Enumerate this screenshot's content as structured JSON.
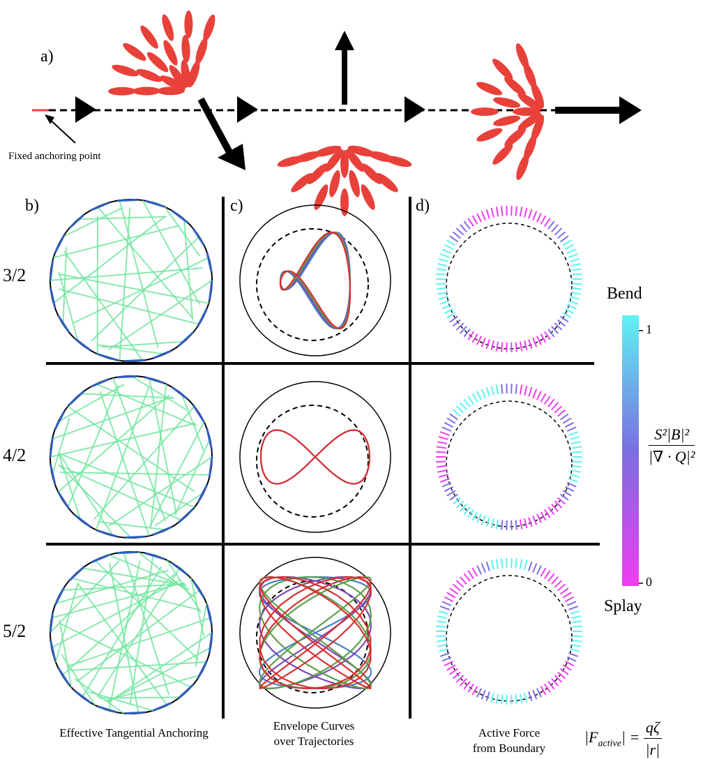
{
  "panel_a": {
    "letter": "a)",
    "anchor_label": "Fixed anchoring point"
  },
  "panel_b": {
    "letter": "b)",
    "caption": "Effective Tangential Anchoring"
  },
  "panel_c": {
    "letter": "c)",
    "caption_line1": "Envelope Curves",
    "caption_line2": "over Trajectories"
  },
  "panel_d": {
    "letter": "d)",
    "caption_line1": "Active Force",
    "caption_line2": "from Boundary"
  },
  "rows": [
    {
      "label": "3/2"
    },
    {
      "label": "4/2"
    },
    {
      "label": "5/2"
    }
  ],
  "colorbar": {
    "top_label": "Bend",
    "bottom_label": "Splay",
    "tick_max": "1",
    "tick_min": "0",
    "color_top": "#5ff2f2",
    "color_mid": "#7a6fe0",
    "color_bottom": "#f03cf0"
  },
  "formulas": {
    "ratio_num": "S²|B|²",
    "ratio_den": "|∇ · Q|²",
    "force_lhs": "|F",
    "force_sub": "active",
    "force_eq": "| =",
    "force_num": "qζ",
    "force_den": "|r|"
  },
  "colors": {
    "director_red": "#e8413a",
    "trajectory_blue": "#4a7fc4",
    "trajectory_purple": "#7b4ab5",
    "trajectory_green": "#5aa04a",
    "trajectory_red": "#d83030",
    "arrow_green": "#74e6a0",
    "arrow_blue": "#2f5fbf"
  }
}
